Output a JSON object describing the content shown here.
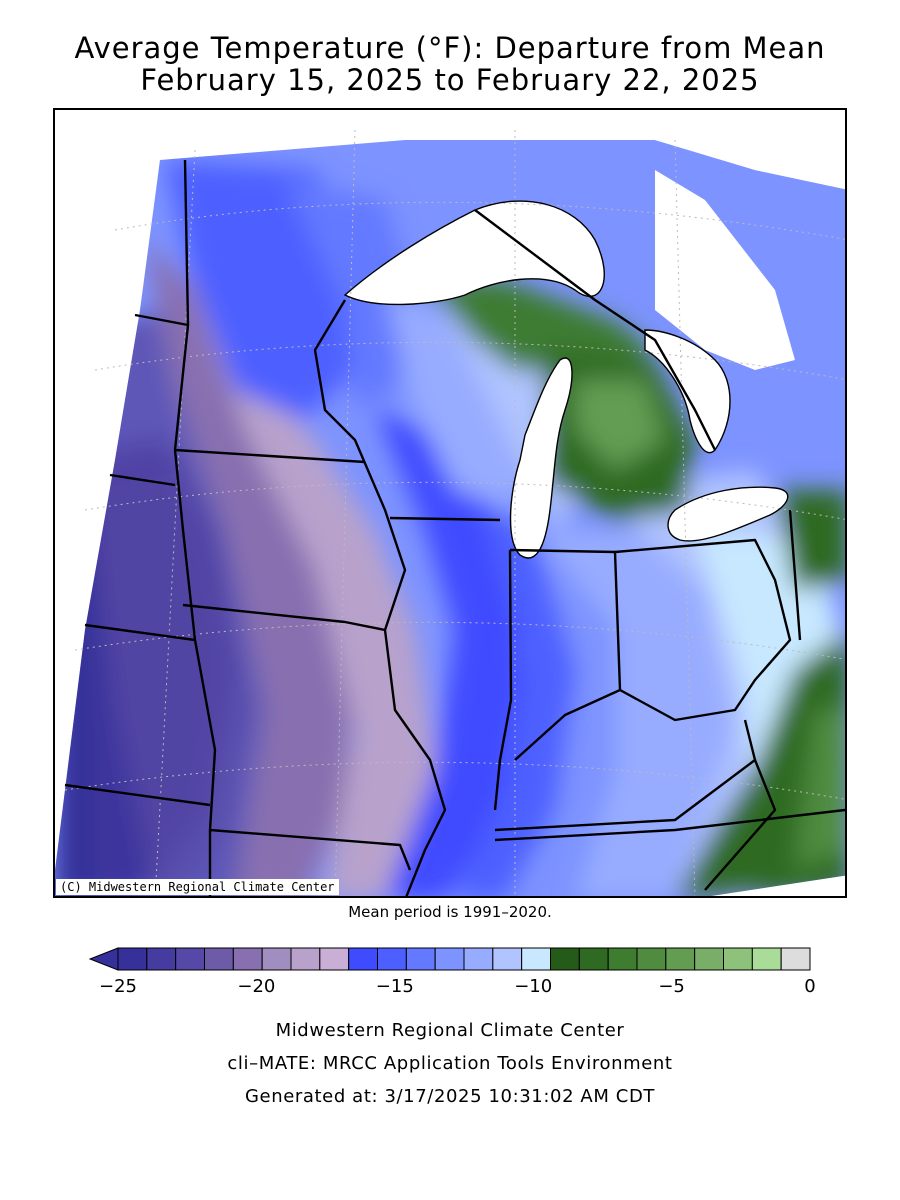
{
  "title_line1": "Average Temperature (°F): Departure from Mean",
  "title_line2": "February 15, 2025 to February 22, 2025",
  "copyright": "(C) Midwestern Regional Climate Center",
  "mean_period": "Mean period is 1991–2020.",
  "legend": {
    "colors": [
      "#35309a",
      "#453ba0",
      "#5648a6",
      "#6d5ba8",
      "#8870b0",
      "#a08ec0",
      "#b8a2cc",
      "#c9aed6",
      "#3f4bff",
      "#4d60ff",
      "#6379ff",
      "#7d93ff",
      "#97acff",
      "#b0c4ff",
      "#c7e8ff",
      "#255b18",
      "#2f6a22",
      "#3e7c30",
      "#4f8c40",
      "#629d52",
      "#78ae67",
      "#8ec27b",
      "#a9dc98",
      "#dddddd"
    ],
    "tick_labels": [
      "−25",
      "−20",
      "−15",
      "−10",
      "−5",
      "0"
    ]
  },
  "footer": {
    "line1": "Midwestern Regional Climate Center",
    "line2": "cli–MATE: MRCC Application Tools Environment",
    "line3": "Generated at: 3/17/2025 10:31:02 AM CDT"
  }
}
